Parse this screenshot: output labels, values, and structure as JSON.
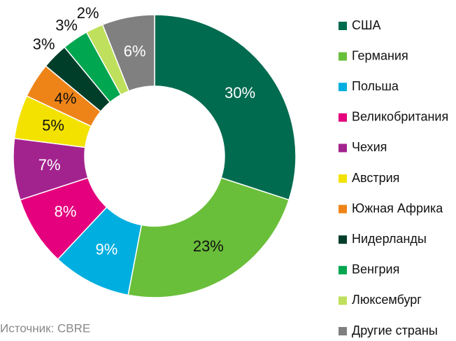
{
  "chart_data": {
    "type": "donut",
    "categories": [
      "США",
      "Германия",
      "Польша",
      "Великобритания",
      "Чехия",
      "Австрия",
      "Южная Африка",
      "Нидерланды",
      "Венгрия",
      "Люксембург",
      "Другие страны"
    ],
    "values": [
      30,
      23,
      9,
      8,
      7,
      5,
      4,
      3,
      3,
      2,
      6
    ],
    "value_labels": [
      "30%",
      "23%",
      "9%",
      "8%",
      "7%",
      "5%",
      "4%",
      "3%",
      "3%",
      "2%",
      "6%"
    ],
    "colors": [
      "#006b4f",
      "#6abf3a",
      "#00aedf",
      "#e5007d",
      "#a3238e",
      "#f3e200",
      "#ee8418",
      "#003e2a",
      "#00a650",
      "#bfe05c",
      "#808080"
    ],
    "source": "Источник: CBRE"
  }
}
